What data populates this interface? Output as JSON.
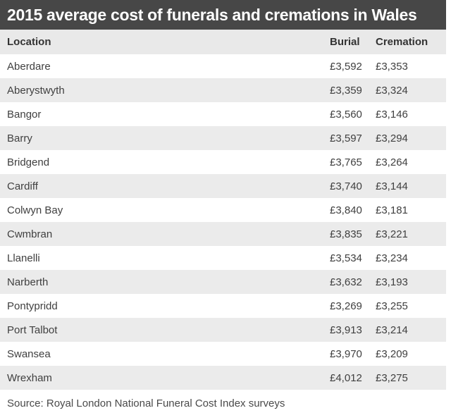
{
  "title": "2015 average cost of funerals and cremations in Wales",
  "source": "Source: Royal London National Funeral Cost Index surveys",
  "colors": {
    "title_bar_bg": "#474747",
    "title_text": "#ffffff",
    "header_bg": "#e9e9e9",
    "row_alt_bg": "#ebebeb",
    "row_bg": "#ffffff",
    "text": "#404040"
  },
  "chart_data": {
    "type": "table",
    "title": "2015 average cost of funerals and cremations in Wales",
    "columns": [
      "Location",
      "Burial",
      "Cremation"
    ],
    "rows": [
      {
        "location": "Aberdare",
        "burial": "£3,592",
        "cremation": "£3,353"
      },
      {
        "location": "Aberystwyth",
        "burial": "£3,359",
        "cremation": "£3,324"
      },
      {
        "location": "Bangor",
        "burial": "£3,560",
        "cremation": "£3,146"
      },
      {
        "location": "Barry",
        "burial": "£3,597",
        "cremation": "£3,294"
      },
      {
        "location": "Bridgend",
        "burial": "£3,765",
        "cremation": "£3,264"
      },
      {
        "location": "Cardiff",
        "burial": "£3,740",
        "cremation": "£3,144"
      },
      {
        "location": "Colwyn Bay",
        "burial": "£3,840",
        "cremation": "£3,181"
      },
      {
        "location": "Cwmbran",
        "burial": "£3,835",
        "cremation": "£3,221"
      },
      {
        "location": "Llanelli",
        "burial": "£3,534",
        "cremation": "£3,234"
      },
      {
        "location": "Narberth",
        "burial": "£3,632",
        "cremation": "£3,193"
      },
      {
        "location": "Pontypridd",
        "burial": "£3,269",
        "cremation": "£3,255"
      },
      {
        "location": "Port Talbot",
        "burial": "£3,913",
        "cremation": "£3,214"
      },
      {
        "location": "Swansea",
        "burial": "£3,970",
        "cremation": "£3,209"
      },
      {
        "location": "Wrexham",
        "burial": "£4,012",
        "cremation": "£3,275"
      }
    ],
    "source": "Source: Royal London National Funeral Cost Index surveys"
  }
}
